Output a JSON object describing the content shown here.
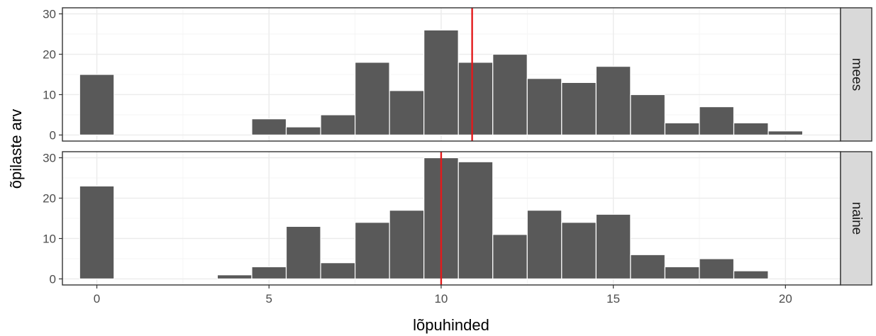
{
  "chart_data": {
    "type": "bar",
    "xlabel": "lõpuhinded",
    "ylabel": "õpilaste arv",
    "xlim": [
      -1,
      21.6
    ],
    "ylim": [
      -1.5,
      31.5
    ],
    "x_ticks": [
      0,
      5,
      10,
      15,
      20
    ],
    "y_ticks": [
      0,
      10,
      20,
      30
    ],
    "grid": true,
    "bar_color": "#595959",
    "line_color": "#e31a1c",
    "panels": [
      {
        "strip_label": "mees",
        "vline": 10.9,
        "bins": [
          0,
          5,
          6,
          7,
          8,
          9,
          10,
          11,
          12,
          13,
          14,
          15,
          16,
          17,
          18,
          19,
          20
        ],
        "values": [
          15,
          4,
          2,
          5,
          18,
          11,
          26,
          18,
          20,
          14,
          13,
          17,
          10,
          3,
          7,
          3,
          1
        ]
      },
      {
        "strip_label": "naine",
        "vline": 10.0,
        "bins": [
          0,
          4,
          5,
          6,
          7,
          8,
          9,
          10,
          11,
          12,
          13,
          14,
          15,
          16,
          17,
          18,
          19
        ],
        "values": [
          23,
          1,
          3,
          13,
          4,
          14,
          17,
          30,
          29,
          11,
          17,
          14,
          16,
          6,
          3,
          5,
          2
        ]
      }
    ]
  }
}
